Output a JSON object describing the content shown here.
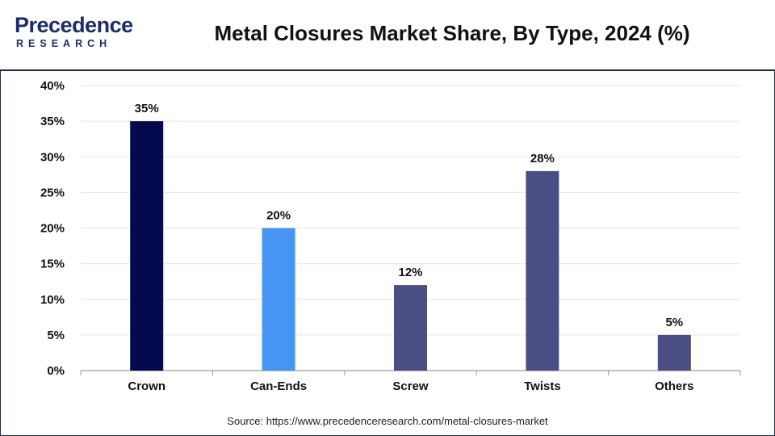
{
  "header": {
    "logo_top": "Precedence",
    "logo_bottom": "RESEARCH",
    "title": "Metal Closures Market Share, By Type, 2024 (%)"
  },
  "source": "Source: https://www.precedenceresearch.com/metal-closures-market",
  "colors": {
    "crown": "#050a4e",
    "can_ends": "#4795f2",
    "default_bar": "#4a4e85",
    "grid": "#e6e6e6",
    "axis": "#9a9a9a",
    "brand": "#1a2c6b"
  },
  "chart_data": {
    "type": "bar",
    "title": "Metal Closures Market Share, By Type, 2024 (%)",
    "categories": [
      "Crown",
      "Can-Ends",
      "Screw",
      "Twists",
      "Others"
    ],
    "values": [
      35,
      20,
      12,
      28,
      5
    ],
    "value_labels": [
      "35%",
      "20%",
      "12%",
      "28%",
      "5%"
    ],
    "bar_colors": [
      "#050a4e",
      "#4795f2",
      "#4a4e85",
      "#4a4e85",
      "#4a4e85"
    ],
    "ylim": [
      0,
      40
    ],
    "y_ticks": [
      0,
      5,
      10,
      15,
      20,
      25,
      30,
      35,
      40
    ],
    "y_tick_labels": [
      "0%",
      "5%",
      "10%",
      "15%",
      "20%",
      "25%",
      "30%",
      "35%",
      "40%"
    ],
    "xlabel": "",
    "ylabel": "",
    "grid": true,
    "legend": "none"
  }
}
